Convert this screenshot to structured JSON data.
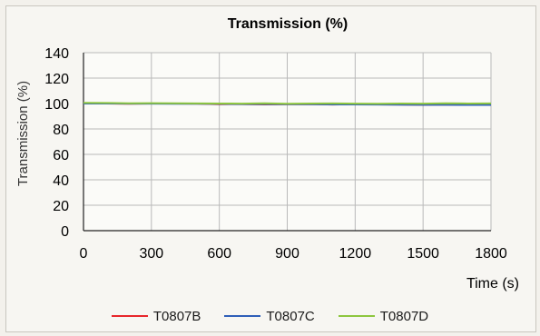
{
  "chart_data": {
    "type": "line",
    "title": "Transmission (%)",
    "xlabel": "Time (s)",
    "ylabel": "Transmission (%)",
    "xlim": [
      0,
      1800
    ],
    "ylim": [
      0,
      140
    ],
    "xticks": [
      0,
      300,
      600,
      900,
      1200,
      1500,
      1800
    ],
    "yticks": [
      0,
      20,
      40,
      60,
      80,
      100,
      120,
      140
    ],
    "grid": true,
    "legend_position": "bottom",
    "x": [
      0,
      100,
      200,
      300,
      400,
      500,
      600,
      700,
      800,
      900,
      1000,
      1100,
      1200,
      1300,
      1400,
      1500,
      1600,
      1700,
      1800
    ],
    "series": [
      {
        "name": "T0807B",
        "color": "#e8262b",
        "values": [
          100,
          100,
          99.8,
          100,
          100,
          99.9,
          99.5,
          99.6,
          99.3,
          99.4,
          99.6,
          99.2,
          99.5,
          99.3,
          99.2,
          99.0,
          99.2,
          99.0,
          99.1
        ]
      },
      {
        "name": "T0807C",
        "color": "#2f5fb8",
        "values": [
          100,
          100,
          99.9,
          99.9,
          99.8,
          99.8,
          99.7,
          99.6,
          99.6,
          99.5,
          99.4,
          99.3,
          99.3,
          99.2,
          99.1,
          99.0,
          99.0,
          98.9,
          98.9
        ]
      },
      {
        "name": "T0807D",
        "color": "#8dc63f",
        "values": [
          100.5,
          100.4,
          100.2,
          100.3,
          100.2,
          100.1,
          100.0,
          99.9,
          100.2,
          99.8,
          100.0,
          100.1,
          99.9,
          99.8,
          100.0,
          99.9,
          100.2,
          100.0,
          100.1
        ]
      }
    ]
  }
}
